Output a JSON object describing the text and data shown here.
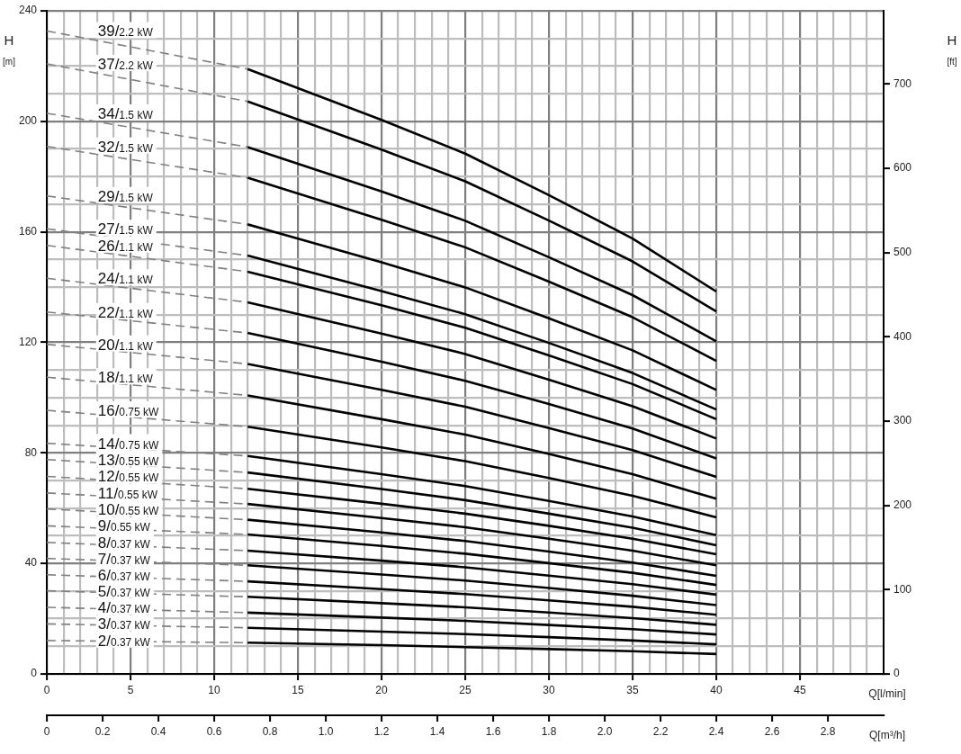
{
  "chart_data": {
    "type": "line",
    "ylabel": "H [m]",
    "y2label": "H [ft]",
    "xlabel": "Q[l/min]",
    "x2label": "Q[m³/h]",
    "grid": true,
    "xlim": [
      0,
      50
    ],
    "xticks": [
      0,
      {
        "value": 1,
        "label": null
      },
      {
        "value": 2,
        "label": null
      },
      {
        "value": 3,
        "label": null
      },
      {
        "value": 4,
        "label": null
      },
      5,
      {
        "value": 6,
        "label": null
      },
      {
        "value": 7,
        "label": null
      },
      {
        "value": 8,
        "label": null
      },
      {
        "value": 9,
        "label": null
      },
      10,
      {
        "value": 11,
        "label": null
      },
      {
        "value": 12,
        "label": null
      },
      {
        "value": 13,
        "label": null
      },
      {
        "value": 14,
        "label": null
      },
      15,
      {
        "value": 16,
        "label": null
      },
      {
        "value": 17,
        "label": null
      },
      {
        "value": 18,
        "label": null
      },
      {
        "value": 19,
        "label": null
      },
      20,
      {
        "value": 21,
        "label": null
      },
      {
        "value": 22,
        "label": null
      },
      {
        "value": 23,
        "label": null
      },
      {
        "value": 24,
        "label": null
      },
      25,
      {
        "value": 26,
        "label": null
      },
      {
        "value": 27,
        "label": null
      },
      {
        "value": 28,
        "label": null
      },
      {
        "value": 29,
        "label": null
      },
      30,
      {
        "value": 31,
        "label": null
      },
      {
        "value": 32,
        "label": null
      },
      {
        "value": 33,
        "label": null
      },
      {
        "value": 34,
        "label": null
      },
      35,
      {
        "value": 36,
        "label": null
      },
      {
        "value": 37,
        "label": null
      },
      {
        "value": 38,
        "label": null
      },
      {
        "value": 39,
        "label": null
      },
      40,
      {
        "value": 41,
        "label": null
      },
      {
        "value": 42,
        "label": null
      },
      {
        "value": 43,
        "label": null
      },
      {
        "value": 44,
        "label": null
      },
      45,
      {
        "value": 46,
        "label": null
      },
      {
        "value": 47,
        "label": null
      },
      {
        "value": 48,
        "label": null
      },
      {
        "value": 49,
        "label": null
      }
    ],
    "ylim": [
      0,
      240
    ],
    "yticks": [
      0,
      {
        "value": 10,
        "label": null
      },
      {
        "value": 20,
        "label": null
      },
      {
        "value": 30,
        "label": null
      },
      40,
      {
        "value": 50,
        "label": null
      },
      {
        "value": 60,
        "label": null
      },
      {
        "value": 70,
        "label": null
      },
      80,
      {
        "value": 90,
        "label": null
      },
      {
        "value": 100,
        "label": null
      },
      {
        "value": 110,
        "label": null
      },
      120,
      {
        "value": 130,
        "label": null
      },
      {
        "value": 140,
        "label": null
      },
      {
        "value": 150,
        "label": null
      },
      160,
      {
        "value": 170,
        "label": null
      },
      {
        "value": 180,
        "label": null
      },
      {
        "value": 190,
        "label": null
      },
      200,
      {
        "value": 210,
        "label": null
      },
      {
        "value": 220,
        "label": null
      },
      {
        "value": 230,
        "label": null
      },
      240
    ],
    "y2lim": [
      0,
      787
    ],
    "y2ticks": [
      0,
      100,
      200,
      300,
      400,
      500,
      600,
      700
    ],
    "x2lim": [
      0,
      3
    ],
    "x2ticks": [
      0,
      0.2,
      0.4,
      0.6,
      0.8,
      {
        "value": 1,
        "label": "1.0"
      },
      1.2,
      1.4,
      1.6,
      1.8,
      {
        "value": 2,
        "label": "2.0"
      },
      2.2,
      2.4,
      2.6,
      2.8
    ],
    "series": [
      {
        "name": "39/2.2 kW",
        "color": "#808080",
        "line_style": "dashed",
        "x": [
          0,
          12
        ],
        "values": [
          232.7,
          218.9
        ]
      },
      {
        "color": "#000000",
        "x": [
          12,
          20,
          25,
          30,
          35,
          40
        ],
        "values": [
          218.9,
          200.5,
          188.3,
          173.3,
          157.6,
          138.4
        ]
      },
      {
        "name": "37/2.2 kW",
        "color": "#808080",
        "line_style": "dashed",
        "x": [
          0,
          12
        ],
        "values": [
          220.8,
          207.2
        ]
      },
      {
        "color": "#000000",
        "x": [
          12,
          20,
          25,
          30,
          35,
          40
        ],
        "values": [
          207.2,
          189.8,
          178.3,
          164.1,
          149.3,
          131.2
        ]
      },
      {
        "name": "34/1.5 kW",
        "color": "#808080",
        "line_style": "dashed",
        "x": [
          0,
          12
        ],
        "values": [
          202.9,
          190.7
        ]
      },
      {
        "color": "#000000",
        "x": [
          12,
          20,
          25,
          30,
          35,
          40
        ],
        "values": [
          190.7,
          174.6,
          164.0,
          150.8,
          137.1,
          120.4
        ]
      },
      {
        "name": "32/1.5 kW",
        "color": "#808080",
        "line_style": "dashed",
        "x": [
          0,
          12
        ],
        "values": [
          190.9,
          179.6
        ]
      },
      {
        "color": "#000000",
        "x": [
          12,
          20,
          25,
          30,
          35,
          40
        ],
        "values": [
          179.6,
          164.4,
          154.4,
          142.0,
          129.1,
          113.3
        ]
      },
      {
        "name": "29/1.5 kW",
        "color": "#808080",
        "line_style": "dashed",
        "x": [
          0,
          12
        ],
        "values": [
          173.0,
          162.7
        ]
      },
      {
        "color": "#000000",
        "x": [
          12,
          20,
          25,
          30,
          35,
          40
        ],
        "values": [
          162.7,
          149.0,
          139.9,
          128.7,
          117.1,
          102.8
        ]
      },
      {
        "name": "27/1.5 kW",
        "color": "#808080",
        "line_style": "dashed",
        "x": [
          0,
          12
        ],
        "values": [
          161.1,
          151.4
        ]
      },
      {
        "color": "#000000",
        "x": [
          12,
          20,
          25,
          30,
          35,
          40
        ],
        "values": [
          151.4,
          138.6,
          130.2,
          119.8,
          108.9,
          95.7
        ]
      },
      {
        "name": "26/1.1 kW",
        "color": "#808080",
        "line_style": "dashed",
        "x": [
          0,
          12
        ],
        "values": [
          155.1,
          145.6
        ]
      },
      {
        "color": "#000000",
        "x": [
          12,
          20,
          25,
          30,
          35,
          40
        ],
        "values": [
          145.6,
          133.4,
          125.3,
          115.3,
          104.9,
          92.2
        ]
      },
      {
        "name": "24/1.1 kW",
        "color": "#808080",
        "line_style": "dashed",
        "x": [
          0,
          12
        ],
        "values": [
          143.2,
          134.5
        ]
      },
      {
        "color": "#000000",
        "x": [
          12,
          20,
          25,
          30,
          35,
          40
        ],
        "values": [
          134.5,
          123.2,
          115.8,
          106.5,
          96.9,
          85.2
        ]
      },
      {
        "name": "22/1.1 kW",
        "color": "#808080",
        "line_style": "dashed",
        "x": [
          0,
          12
        ],
        "values": [
          131.0,
          123.4
        ]
      },
      {
        "color": "#000000",
        "x": [
          12,
          20,
          25,
          30,
          35,
          40
        ],
        "values": [
          123.4,
          113.0,
          106.1,
          97.7,
          88.8,
          78.0
        ]
      },
      {
        "name": "20/1.1 kW",
        "color": "#808080",
        "line_style": "dashed",
        "x": [
          0,
          12
        ],
        "values": [
          119.3,
          112.2
        ]
      },
      {
        "color": "#000000",
        "x": [
          12,
          20,
          25,
          30,
          35,
          40
        ],
        "values": [
          112.2,
          102.8,
          96.7,
          89.0,
          81.0,
          71.3
        ]
      },
      {
        "name": "18/1.1 kW",
        "color": "#808080",
        "line_style": "dashed",
        "x": [
          0,
          12
        ],
        "values": [
          107.4,
          100.8
        ]
      },
      {
        "color": "#000000",
        "x": [
          12,
          20,
          25,
          30,
          35,
          40
        ],
        "values": [
          100.8,
          92.2,
          86.6,
          79.6,
          72.3,
          63.4
        ]
      },
      {
        "name": "16/0.75 kW",
        "color": "#808080",
        "line_style": "dashed",
        "x": [
          0,
          12
        ],
        "values": [
          95.4,
          89.5
        ]
      },
      {
        "color": "#000000",
        "x": [
          12,
          20,
          25,
          30,
          35,
          40
        ],
        "values": [
          89.5,
          82.0,
          77.0,
          70.9,
          64.5,
          56.7
        ]
      },
      {
        "name": "14/0.75 kW",
        "color": "#808080",
        "line_style": "dashed",
        "x": [
          0,
          12
        ],
        "values": [
          83.5,
          78.9
        ]
      },
      {
        "color": "#000000",
        "x": [
          12,
          20,
          25,
          30,
          35,
          40
        ],
        "values": [
          78.9,
          72.3,
          68.0,
          62.6,
          57.0,
          50.2
        ]
      },
      {
        "name": "13/0.55 kW",
        "color": "#808080",
        "line_style": "dashed",
        "x": [
          0,
          12
        ],
        "values": [
          77.6,
          72.9
        ]
      },
      {
        "color": "#000000",
        "x": [
          12,
          20,
          25,
          30,
          35,
          40
        ],
        "values": [
          72.9,
          66.9,
          62.9,
          58.0,
          52.9,
          46.6
        ]
      },
      {
        "name": "12/0.55 kW",
        "color": "#808080",
        "line_style": "dashed",
        "x": [
          0,
          12
        ],
        "values": [
          71.5,
          67.0
        ]
      },
      {
        "color": "#000000",
        "x": [
          12,
          20,
          25,
          30,
          35,
          40
        ],
        "values": [
          67.0,
          61.6,
          58.0,
          53.6,
          48.9,
          43.3
        ]
      },
      {
        "name": "11/0.55 kW",
        "color": "#808080",
        "line_style": "dashed",
        "x": [
          0,
          12
        ],
        "values": [
          65.5,
          61.5
        ]
      },
      {
        "color": "#000000",
        "x": [
          12,
          20,
          25,
          30,
          35,
          40
        ],
        "values": [
          61.5,
          56.4,
          53.1,
          48.9,
          44.6,
          39.3
        ]
      },
      {
        "name": "10/0.55 kW",
        "color": "#808080",
        "line_style": "dashed",
        "x": [
          0,
          12
        ],
        "values": [
          59.7,
          55.8
        ]
      },
      {
        "color": "#000000",
        "x": [
          12,
          20,
          25,
          30,
          35,
          40
        ],
        "values": [
          55.8,
          51.2,
          48.1,
          44.3,
          40.3,
          35.5
        ]
      },
      {
        "name": "9/0.55 kW",
        "color": "#808080",
        "line_style": "dashed",
        "x": [
          0,
          12
        ],
        "values": [
          53.6,
          50.5
        ]
      },
      {
        "color": "#000000",
        "x": [
          12,
          20,
          25,
          30,
          35,
          40
        ],
        "values": [
          50.5,
          46.3,
          43.5,
          40.1,
          36.6,
          32.2
        ]
      },
      {
        "name": "8/0.37 kW",
        "color": "#808080",
        "line_style": "dashed",
        "x": [
          0,
          12
        ],
        "values": [
          47.6,
          44.6
        ]
      },
      {
        "color": "#000000",
        "x": [
          12,
          20,
          25,
          30,
          35,
          40
        ],
        "values": [
          44.6,
          41.0,
          38.6,
          35.6,
          32.5,
          28.7
        ]
      },
      {
        "name": "7/0.37 kW",
        "color": "#808080",
        "line_style": "dashed",
        "x": [
          0,
          12
        ],
        "values": [
          41.8,
          39.3
        ]
      },
      {
        "color": "#000000",
        "x": [
          12,
          20,
          25,
          30,
          35,
          40
        ],
        "values": [
          39.3,
          36.0,
          33.8,
          31.1,
          28.3,
          24.9
        ]
      },
      {
        "name": "6/0.37 kW",
        "color": "#808080",
        "line_style": "dashed",
        "x": [
          0,
          12
        ],
        "values": [
          35.9,
          33.5
        ]
      },
      {
        "color": "#000000",
        "x": [
          12,
          20,
          25,
          30,
          35,
          40
        ],
        "values": [
          33.5,
          30.7,
          28.9,
          26.6,
          24.3,
          21.4
        ]
      },
      {
        "name": "5/0.37 kW",
        "color": "#808080",
        "line_style": "dashed",
        "x": [
          0,
          12
        ],
        "values": [
          30.1,
          27.9
        ]
      },
      {
        "color": "#000000",
        "x": [
          12,
          20,
          25,
          30,
          35,
          40
        ],
        "values": [
          27.9,
          25.6,
          24.1,
          22.2,
          20.2,
          17.8
        ]
      },
      {
        "name": "4/0.37 kW",
        "color": "#808080",
        "line_style": "dashed",
        "x": [
          0,
          12
        ],
        "values": [
          24.1,
          22.2
        ]
      },
      {
        "color": "#000000",
        "x": [
          12,
          20,
          25,
          30,
          35,
          40
        ],
        "values": [
          22.2,
          20.4,
          19.2,
          17.7,
          16.2,
          14.3
        ]
      },
      {
        "name": "3/0.37 kW",
        "color": "#808080",
        "line_style": "dashed",
        "x": [
          0,
          12
        ],
        "values": [
          18.1,
          16.7
        ]
      },
      {
        "color": "#000000",
        "x": [
          12,
          20,
          25,
          30,
          35,
          40
        ],
        "values": [
          16.7,
          15.3,
          14.4,
          13.3,
          12.1,
          10.7
        ]
      },
      {
        "name": "2/0.37 kW",
        "color": "#808080",
        "line_style": "dashed",
        "x": [
          0,
          12
        ],
        "values": [
          12.1,
          11.3
        ]
      },
      {
        "color": "#000000",
        "x": [
          12,
          20,
          25,
          30,
          35,
          40
        ],
        "values": [
          11.3,
          10.4,
          9.7,
          9.0,
          8.2,
          7.2
        ]
      }
    ]
  }
}
